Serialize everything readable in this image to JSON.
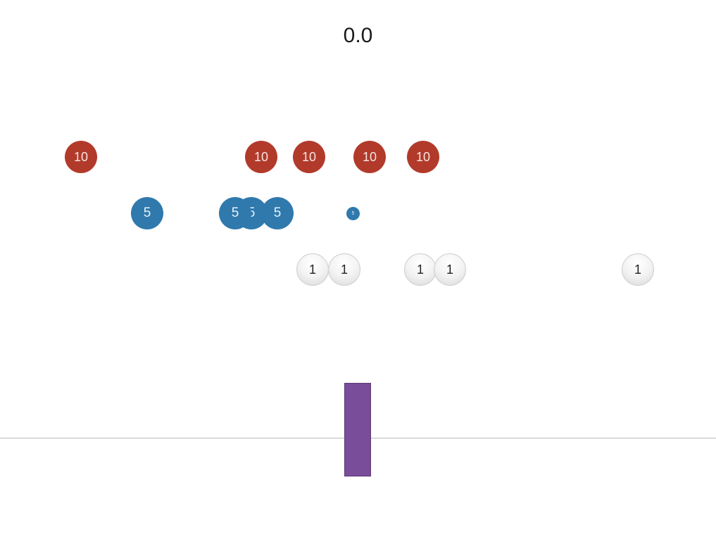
{
  "score": "0.0",
  "colors": {
    "red_coin": "#b23a2b",
    "blue_coin": "#2f79ad",
    "white_coin": "#f0f0f0",
    "paddle": "#7a4d9a",
    "floor": "#b9b9b9"
  },
  "coins": {
    "red": [
      "10",
      "10",
      "10",
      "10",
      "10"
    ],
    "blue": [
      "5",
      "5",
      "5",
      "5",
      "5"
    ],
    "white": [
      "1",
      "1",
      "1",
      "1",
      "1"
    ]
  }
}
